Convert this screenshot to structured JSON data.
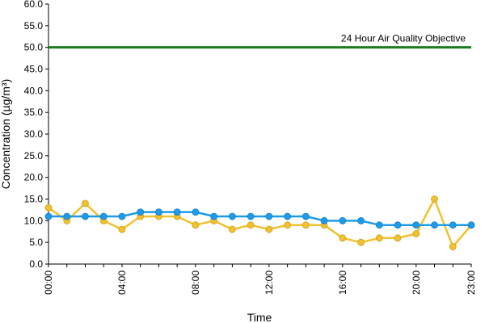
{
  "chart_data": {
    "type": "line",
    "xlabel": "Time",
    "ylabel": "Concentration (µg/m³)",
    "ylim": [
      0,
      60
    ],
    "yticks": [
      "0.0",
      "5.0",
      "10.0",
      "15.0",
      "20.0",
      "25.0",
      "30.0",
      "35.0",
      "40.0",
      "45.0",
      "50.0",
      "55.0",
      "60.0"
    ],
    "x_hours": [
      0,
      1,
      2,
      3,
      4,
      5,
      6,
      7,
      8,
      9,
      10,
      11,
      12,
      13,
      14,
      15,
      16,
      17,
      18,
      19,
      20,
      21,
      22,
      23
    ],
    "xticks": [
      {
        "hour": 0,
        "label": "00:00"
      },
      {
        "hour": 4,
        "label": "04:00"
      },
      {
        "hour": 8,
        "label": "08:00"
      },
      {
        "hour": 12,
        "label": "12:00"
      },
      {
        "hour": 16,
        "label": "16:00"
      },
      {
        "hour": 20,
        "label": "20:00"
      },
      {
        "hour": 23,
        "label": "23:00"
      }
    ],
    "series": [
      {
        "color": "#1E9BE8",
        "values": [
          11,
          11,
          11,
          11,
          11,
          12,
          12,
          12,
          12,
          11,
          11,
          11,
          11,
          11,
          11,
          10,
          10,
          10,
          9,
          9,
          9,
          9,
          9,
          9
        ]
      },
      {
        "color": "#F2C12E",
        "values": [
          13,
          10,
          14,
          10,
          8,
          11,
          11,
          11,
          9,
          10,
          8,
          9,
          8,
          9,
          9,
          9,
          6,
          5,
          6,
          6,
          7,
          15,
          4,
          9
        ]
      }
    ],
    "reference_line": {
      "value": 50,
      "label": "24 Hour Air Quality Objective",
      "color": "#1E7B1E"
    },
    "grid": false,
    "legend": "none"
  }
}
